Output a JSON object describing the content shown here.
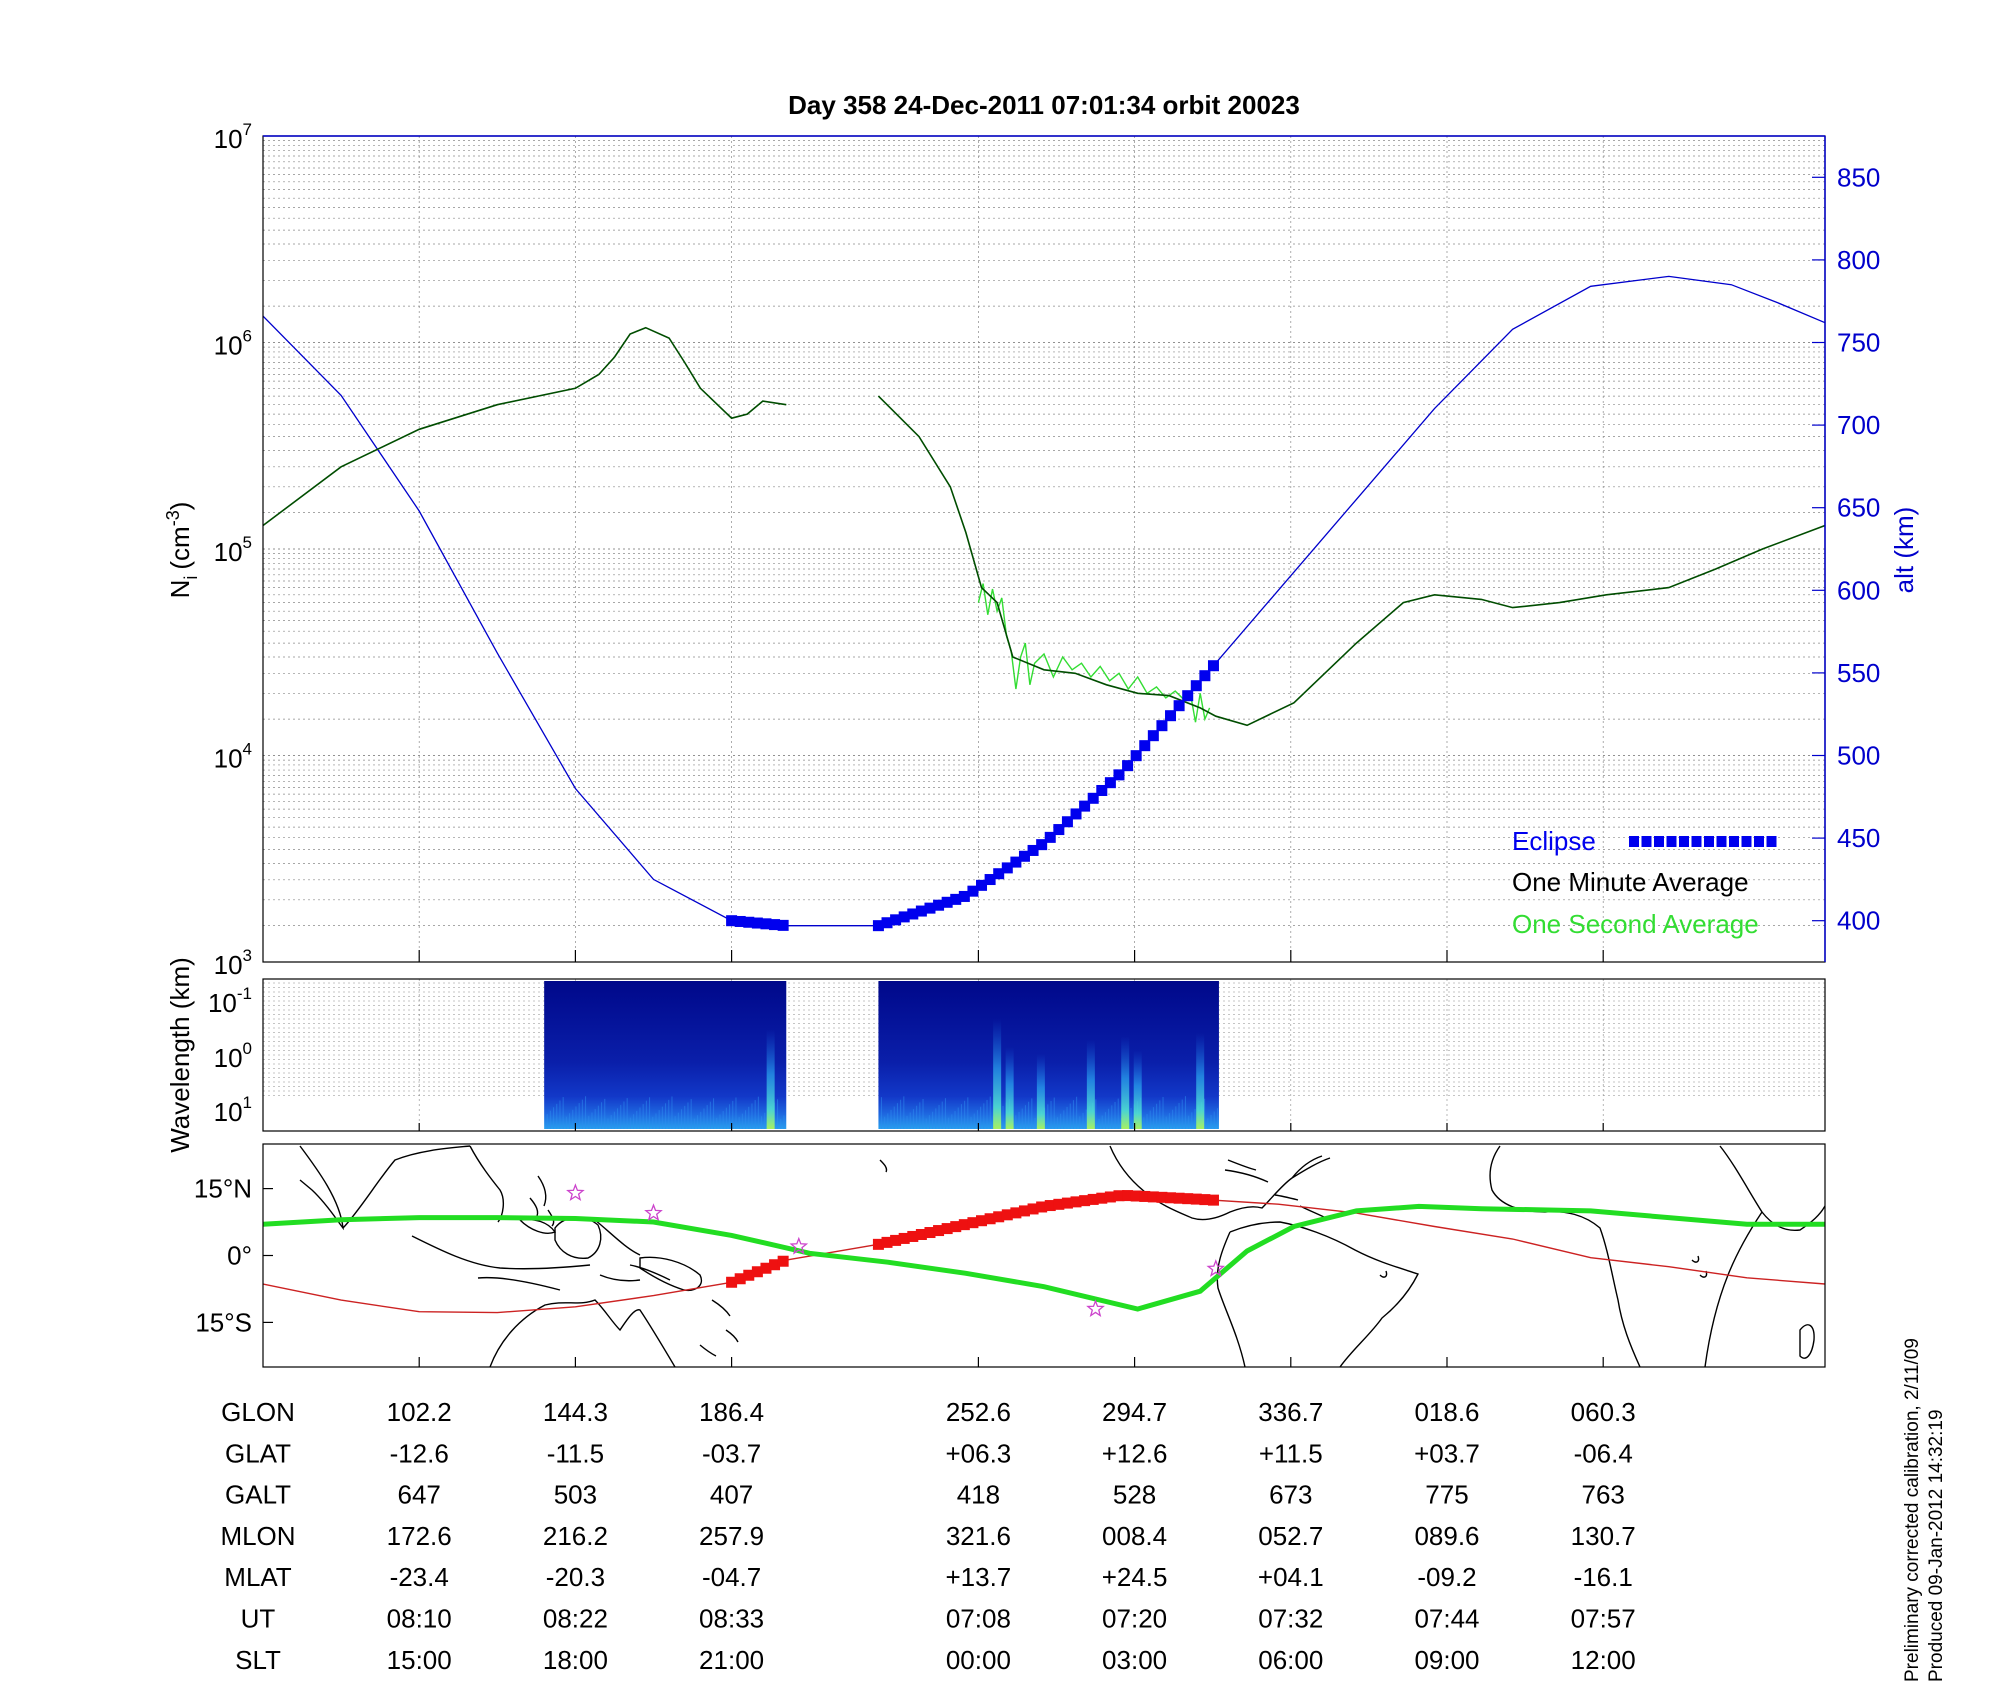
{
  "title": "Day 358  24-Dec-2011 07:01:34   orbit 20023",
  "footer": {
    "line1": "Preliminary corrected calibration, 2/11/09",
    "line2": "Produced 09-Jan-2012 14:32:19"
  },
  "colors": {
    "altitude": "#0000cc",
    "density_minute": "#004d00",
    "density_second": "#33dd33",
    "eclipse": "#0000ee",
    "track_eclipse": "#ee1111",
    "track": "#cc2222",
    "mag_equator": "#22dd22",
    "star": "#cc44cc"
  },
  "chart_data": [
    {
      "type": "line",
      "panel": "density",
      "ylabel_main": "N",
      "ylabel_sub": "i",
      "ylabel_unit": "(cm",
      "ylabel_exp": "-3",
      "ylabel_close": ")",
      "yscale": "log",
      "ylim": [
        1000,
        10000000
      ],
      "y_tick_labels": [
        {
          "base": "10",
          "exp": "3",
          "value": 1000
        },
        {
          "base": "10",
          "exp": "4",
          "value": 10000
        },
        {
          "base": "10",
          "exp": "5",
          "value": 100000
        },
        {
          "base": "10",
          "exp": "6",
          "value": 1000000
        },
        {
          "base": "10",
          "exp": "7",
          "value": 10000000
        }
      ],
      "y2label": "alt (km)",
      "y2lim": [
        375,
        875
      ],
      "y2_ticks": [
        400,
        450,
        500,
        550,
        600,
        650,
        700,
        750,
        800,
        850
      ],
      "xlim": [
        0,
        1
      ],
      "x_ticks": [
        0.1,
        0.2,
        0.3,
        0.458,
        0.558,
        0.658,
        0.758,
        0.858
      ],
      "grid": true,
      "series": [
        {
          "name": "One Minute Average",
          "x": [
            0,
            0.05,
            0.1,
            0.15,
            0.2,
            0.215,
            0.225,
            0.235,
            0.245,
            0.26,
            0.27,
            0.28,
            0.3,
            0.31,
            0.32,
            0.335
          ],
          "y": [
            130000,
            250000,
            380000,
            500000,
            600000,
            700000,
            850000,
            1100000,
            1180000,
            1050000,
            800000,
            600000,
            430000,
            450000,
            520000,
            500000
          ]
        },
        {
          "name": "",
          "x": [
            0.394,
            0.42,
            0.44,
            0.45,
            0.46,
            0.47,
            0.48,
            0.5,
            0.52,
            0.54,
            0.56,
            0.58,
            0.6,
            0.61,
            0.63,
            0.66,
            0.7,
            0.73,
            0.75,
            0.78,
            0.8,
            0.83,
            0.86,
            0.9,
            0.93,
            0.96,
            1.0
          ],
          "y": [
            550000,
            350000,
            200000,
            120000,
            65000,
            55000,
            30000,
            26000,
            25000,
            22000,
            20000,
            19500,
            17000,
            15500,
            14000,
            18000,
            35000,
            55000,
            60000,
            57000,
            52000,
            55000,
            60000,
            65000,
            80000,
            100000,
            130000
          ]
        }
      ],
      "second_average": {
        "name": "One Second Average",
        "x": [
          0.458,
          0.461,
          0.464,
          0.467,
          0.47,
          0.473,
          0.476,
          0.479,
          0.482,
          0.485,
          0.488,
          0.491,
          0.494,
          0.5,
          0.506,
          0.512,
          0.518,
          0.524,
          0.53,
          0.536,
          0.542,
          0.548,
          0.554,
          0.56,
          0.566,
          0.572,
          0.578,
          0.584,
          0.59,
          0.594,
          0.597,
          0.6,
          0.603,
          0.606
        ],
        "y": [
          55000,
          68000,
          48000,
          64000,
          50000,
          58000,
          38000,
          32000,
          21000,
          30000,
          35000,
          22000,
          28000,
          31000,
          24000,
          30000,
          26000,
          28000,
          24000,
          27000,
          23000,
          25000,
          21000,
          24000,
          20000,
          21500,
          19000,
          20500,
          18500,
          19500,
          14500,
          20000,
          15000,
          17000
        ]
      },
      "altitude": {
        "name": "alt (km)",
        "x": [
          0,
          0.05,
          0.1,
          0.15,
          0.2,
          0.25,
          0.3,
          0.335,
          0.394,
          0.45,
          0.5,
          0.55,
          0.6,
          0.65,
          0.7,
          0.75,
          0.8,
          0.85,
          0.9,
          0.94,
          0.97,
          1.0
        ],
        "y": [
          766,
          718,
          648,
          562,
          480,
          425,
          400,
          397,
          397,
          415,
          447,
          490,
          545,
          600,
          655,
          710,
          758,
          784,
          790,
          785,
          774,
          762
        ]
      },
      "eclipse": {
        "name": "Eclipse",
        "segments": [
          [
            0.3,
            0.335
          ],
          [
            0.394,
            0.612
          ]
        ]
      },
      "legend": {
        "placement": "bottom-right",
        "eclipse_label": "Eclipse",
        "minute_label": "One Minute Average",
        "second_label": "One Second Average"
      }
    },
    {
      "type": "heatmap",
      "panel": "spectrogram",
      "ylabel": "Wavelength (km)",
      "y_tick_labels": [
        {
          "base": "10",
          "exp": "-1"
        },
        {
          "base": "10",
          "exp": "0"
        },
        {
          "base": "10",
          "exp": "1"
        }
      ],
      "data_segments": [
        [
          0.18,
          0.335
        ],
        [
          0.394,
          0.612
        ]
      ],
      "bright_features": [
        {
          "x": 0.325,
          "strength": 0.85
        },
        {
          "x": 0.47,
          "strength": 1.0
        },
        {
          "x": 0.478,
          "strength": 0.6
        },
        {
          "x": 0.498,
          "strength": 0.5
        },
        {
          "x": 0.53,
          "strength": 0.7
        },
        {
          "x": 0.552,
          "strength": 0.75
        },
        {
          "x": 0.56,
          "strength": 0.55
        },
        {
          "x": 0.6,
          "strength": 0.8
        }
      ]
    },
    {
      "type": "map",
      "panel": "ground-track",
      "lat_tick_labels": [
        "15°N",
        "0°",
        "15°S"
      ],
      "lat_ticks": [
        15,
        0,
        -15
      ],
      "ylim": [
        -25,
        25
      ],
      "track": {
        "name": "orbit track",
        "x": [
          0,
          0.05,
          0.1,
          0.15,
          0.2,
          0.25,
          0.3,
          0.335,
          0.394,
          0.45,
          0.5,
          0.55,
          0.6,
          0.65,
          0.7,
          0.75,
          0.8,
          0.85,
          0.9,
          0.95,
          1.0
        ],
        "y": [
          -6.4,
          -10,
          -12.6,
          -12.8,
          -11.5,
          -9,
          -6,
          -1.0,
          2.5,
          7,
          11,
          13.5,
          12.6,
          11.5,
          9.5,
          6.5,
          3.7,
          -0.5,
          -2.5,
          -5,
          -6.4
        ]
      },
      "track_eclipse_segments": [
        [
          0.3,
          0.335
        ],
        [
          0.394,
          0.612
        ]
      ],
      "mag_equator": {
        "name": "magnetic equator",
        "x": [
          0,
          0.05,
          0.1,
          0.15,
          0.2,
          0.25,
          0.3,
          0.35,
          0.4,
          0.45,
          0.5,
          0.56,
          0.6,
          0.63,
          0.66,
          0.7,
          0.74,
          0.78,
          0.85,
          0.9,
          0.95,
          1.0
        ],
        "y": [
          7,
          8,
          8.5,
          8.5,
          8.3,
          7.5,
          4.5,
          0.5,
          -1.5,
          -4,
          -7,
          -12,
          -8,
          1,
          6.5,
          10,
          11,
          10.5,
          10,
          8.5,
          7,
          7
        ]
      },
      "stars": [
        {
          "x": 0.2,
          "y": 14
        },
        {
          "x": 0.25,
          "y": 9.5
        },
        {
          "x": 0.343,
          "y": 2
        },
        {
          "x": 0.533,
          "y": -12
        },
        {
          "x": 0.61,
          "y": -3
        }
      ]
    }
  ],
  "ephemeris": {
    "columns_x": [
      0.1,
      0.2,
      0.3,
      0.458,
      0.558,
      0.658,
      0.758,
      0.858
    ],
    "rows": [
      {
        "label": "GLON",
        "values": [
          "102.2",
          "144.3",
          "186.4",
          "252.6",
          "294.7",
          "336.7",
          "018.6",
          "060.3"
        ]
      },
      {
        "label": "GLAT",
        "values": [
          "-12.6",
          "-11.5",
          "-03.7",
          "+06.3",
          "+12.6",
          "+11.5",
          "+03.7",
          "-06.4"
        ]
      },
      {
        "label": "GALT",
        "values": [
          "647",
          "503",
          "407",
          "418",
          "528",
          "673",
          "775",
          "763"
        ]
      },
      {
        "label": "MLON",
        "values": [
          "172.6",
          "216.2",
          "257.9",
          "321.6",
          "008.4",
          "052.7",
          "089.6",
          "130.7"
        ]
      },
      {
        "label": "MLAT",
        "values": [
          "-23.4",
          "-20.3",
          "-04.7",
          "+13.7",
          "+24.5",
          "+04.1",
          "-09.2",
          "-16.1"
        ]
      },
      {
        "label": "UT",
        "values": [
          "08:10",
          "08:22",
          "08:33",
          "07:08",
          "07:20",
          "07:32",
          "07:44",
          "07:57"
        ]
      },
      {
        "label": "SLT",
        "values": [
          "15:00",
          "18:00",
          "21:00",
          "00:00",
          "03:00",
          "06:00",
          "09:00",
          "12:00"
        ]
      }
    ]
  }
}
